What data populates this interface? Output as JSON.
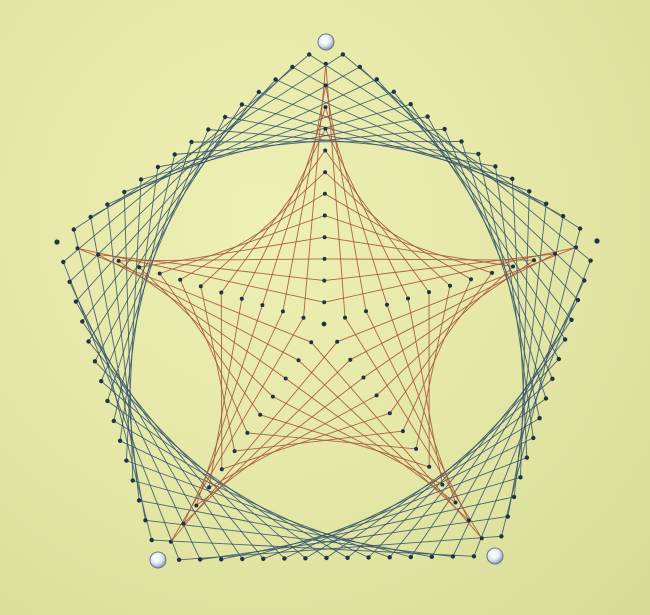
{
  "photo": {
    "subject": "string-art-star",
    "background_color": "#e4e7a6",
    "outer_thread_color": "#2f4f6a",
    "inner_thread_color": "#a2553a",
    "nail_color": "#1f3346",
    "tack_color": "#f6f9ff",
    "icons": [
      "tack-icon",
      "nail-icon"
    ],
    "nails_per_edge": 15,
    "nails_per_spoke": 12
  }
}
